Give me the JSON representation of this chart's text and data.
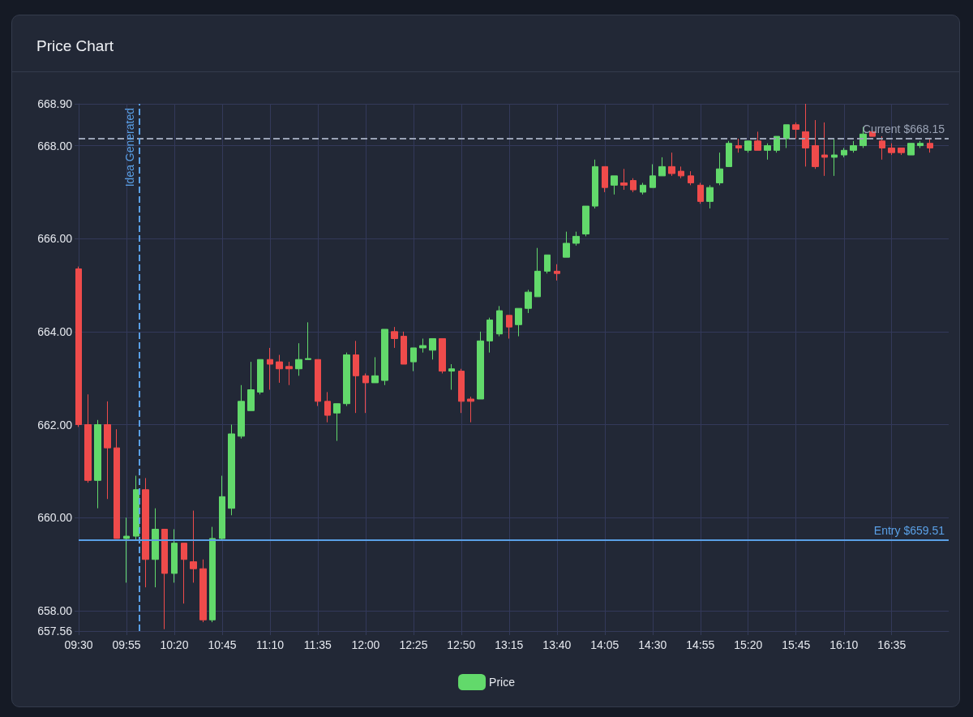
{
  "chart_data": {
    "type": "candlestick",
    "title": "Price Chart",
    "series": [
      {
        "name": "Price",
        "color": "#62d96b",
        "x": [
          9.5,
          9.583,
          9.667,
          9.75,
          9.833,
          9.917,
          10,
          10.083,
          10.167,
          10.25,
          10.333,
          10.417,
          10.5,
          10.583,
          10.667,
          10.75,
          10.833,
          10.917,
          11,
          11.083,
          11.167,
          11.25,
          11.333,
          11.417,
          11.5,
          11.583,
          11.667,
          11.75,
          11.833,
          11.917,
          12,
          12.083,
          12.167,
          12.25,
          12.333,
          12.417,
          12.5,
          12.583,
          12.667,
          12.75,
          12.833,
          12.917,
          13,
          13.083,
          13.167,
          13.25,
          13.333,
          13.417,
          13.5,
          13.583,
          13.667,
          13.75,
          13.833,
          13.917,
          14,
          14.083,
          14.167,
          14.25,
          14.333,
          14.417,
          14.5,
          14.583,
          14.667,
          14.75,
          14.833,
          14.917,
          15,
          15.083,
          15.167,
          15.25,
          15.333,
          15.417,
          15.5,
          15.583,
          15.667,
          15.75,
          15.833,
          15.917,
          16,
          16.083,
          16.167,
          16.25,
          16.333,
          16.417,
          16.5,
          16.583,
          16.667,
          16.75,
          16.833,
          16.917
        ],
        "ohlc": [
          [
            665.35,
            665.4,
            661.95,
            662.0
          ],
          [
            662.0,
            662.65,
            660.75,
            660.8
          ],
          [
            660.8,
            662.1,
            660.2,
            662.0
          ],
          [
            662.0,
            662.5,
            660.4,
            661.5
          ],
          [
            661.5,
            661.9,
            659.55,
            659.55
          ],
          [
            659.55,
            660.0,
            658.6,
            659.6
          ],
          [
            659.6,
            660.9,
            659.5,
            660.6
          ],
          [
            660.6,
            660.85,
            658.5,
            659.1
          ],
          [
            659.1,
            660.2,
            658.5,
            659.75
          ],
          [
            659.75,
            659.75,
            657.6,
            658.8
          ],
          [
            658.8,
            659.75,
            658.6,
            659.45
          ],
          [
            659.45,
            659.45,
            658.15,
            659.1
          ],
          [
            659.05,
            660.15,
            658.6,
            658.9
          ],
          [
            658.9,
            659.1,
            657.75,
            657.8
          ],
          [
            657.8,
            659.8,
            657.75,
            659.55
          ],
          [
            659.55,
            660.9,
            659.5,
            660.45
          ],
          [
            660.2,
            662.0,
            660.05,
            661.8
          ],
          [
            661.75,
            662.85,
            661.7,
            662.5
          ],
          [
            662.3,
            663.35,
            662.3,
            662.75
          ],
          [
            662.7,
            663.4,
            662.65,
            663.4
          ],
          [
            663.4,
            663.65,
            662.75,
            663.3
          ],
          [
            663.35,
            663.5,
            662.9,
            663.2
          ],
          [
            663.25,
            663.35,
            662.85,
            663.2
          ],
          [
            663.2,
            663.75,
            663.05,
            663.4
          ],
          [
            663.4,
            664.2,
            663.4,
            663.42
          ],
          [
            663.4,
            663.4,
            662.4,
            662.5
          ],
          [
            662.5,
            662.7,
            662.05,
            662.2
          ],
          [
            662.25,
            662.45,
            661.65,
            662.45
          ],
          [
            662.45,
            663.55,
            662.4,
            663.5
          ],
          [
            663.5,
            663.8,
            662.25,
            663.05
          ],
          [
            663.05,
            663.1,
            662.25,
            662.9
          ],
          [
            662.9,
            663.45,
            662.9,
            663.05
          ],
          [
            662.95,
            664.05,
            662.85,
            664.05
          ],
          [
            664.0,
            664.1,
            663.65,
            663.85
          ],
          [
            663.9,
            664.0,
            663.3,
            663.3
          ],
          [
            663.35,
            663.65,
            663.15,
            663.65
          ],
          [
            663.65,
            663.85,
            663.55,
            663.7
          ],
          [
            663.6,
            663.85,
            663.4,
            663.85
          ],
          [
            663.85,
            663.85,
            663.1,
            663.15
          ],
          [
            663.15,
            663.3,
            662.75,
            663.2
          ],
          [
            663.15,
            663.2,
            662.25,
            662.5
          ],
          [
            662.55,
            662.6,
            662.05,
            662.5
          ],
          [
            662.55,
            664.0,
            662.55,
            663.8
          ],
          [
            663.8,
            664.3,
            663.55,
            664.25
          ],
          [
            663.95,
            664.55,
            663.9,
            664.45
          ],
          [
            664.35,
            664.35,
            663.85,
            664.1
          ],
          [
            664.15,
            664.5,
            663.9,
            664.5
          ],
          [
            664.5,
            664.9,
            664.4,
            664.85
          ],
          [
            664.75,
            665.8,
            664.75,
            665.3
          ],
          [
            665.3,
            665.65,
            665.25,
            665.65
          ],
          [
            665.3,
            665.45,
            665.1,
            665.25
          ],
          [
            665.6,
            666.15,
            665.6,
            665.9
          ],
          [
            665.9,
            666.15,
            665.85,
            666.05
          ],
          [
            666.1,
            666.7,
            666.05,
            666.7
          ],
          [
            666.7,
            667.7,
            666.65,
            667.55
          ],
          [
            667.55,
            667.55,
            667.0,
            667.1
          ],
          [
            667.15,
            667.35,
            666.95,
            667.35
          ],
          [
            667.2,
            667.5,
            667.05,
            667.15
          ],
          [
            667.25,
            667.3,
            667.0,
            667.05
          ],
          [
            667.0,
            667.2,
            666.95,
            667.15
          ],
          [
            667.1,
            667.6,
            667.1,
            667.35
          ],
          [
            667.35,
            667.75,
            667.35,
            667.55
          ],
          [
            667.55,
            667.85,
            667.35,
            667.4
          ],
          [
            667.45,
            667.55,
            667.3,
            667.35
          ],
          [
            667.35,
            667.45,
            667.15,
            667.2
          ],
          [
            667.15,
            667.2,
            666.75,
            666.8
          ],
          [
            666.8,
            667.15,
            666.65,
            667.1
          ],
          [
            667.2,
            667.85,
            667.15,
            667.5
          ],
          [
            667.55,
            668.1,
            667.55,
            668.05
          ],
          [
            668.0,
            668.15,
            667.85,
            667.95
          ],
          [
            667.9,
            668.1,
            667.85,
            668.1
          ],
          [
            668.1,
            668.3,
            667.9,
            667.9
          ],
          [
            667.9,
            668.05,
            667.7,
            668.0
          ],
          [
            667.9,
            668.2,
            667.85,
            668.2
          ],
          [
            668.15,
            668.45,
            667.95,
            668.45
          ],
          [
            668.45,
            668.5,
            668.15,
            668.35
          ],
          [
            668.3,
            668.9,
            667.55,
            667.95
          ],
          [
            668.0,
            668.55,
            667.5,
            667.55
          ],
          [
            667.8,
            668.5,
            667.35,
            667.75
          ],
          [
            667.75,
            668.15,
            667.35,
            667.8
          ],
          [
            667.8,
            667.95,
            667.75,
            667.9
          ],
          [
            667.9,
            668.1,
            667.85,
            668.0
          ],
          [
            668.0,
            668.4,
            667.95,
            668.25
          ],
          [
            668.3,
            668.3,
            668.2,
            668.2
          ],
          [
            668.1,
            668.2,
            667.7,
            667.95
          ],
          [
            667.95,
            668.05,
            667.8,
            667.85
          ],
          [
            667.95,
            667.95,
            667.8,
            667.85
          ],
          [
            667.8,
            668.05,
            667.8,
            668.05
          ],
          [
            668.0,
            668.1,
            667.95,
            668.05
          ],
          [
            668.05,
            668.15,
            667.85,
            667.95
          ]
        ],
        "colors": [
          "#ef4b4b",
          "#ef4b4b",
          "#62d96b",
          "#ef4b4b",
          "#ef4b4b",
          "#62d96b",
          "#62d96b",
          "#ef4b4b",
          "#62d96b",
          "#ef4b4b",
          "#62d96b",
          "#ef4b4b",
          "#ef4b4b",
          "#ef4b4b",
          "#62d96b",
          "#62d96b",
          "#62d96b",
          "#62d96b",
          "#62d96b",
          "#62d96b",
          "#ef4b4b",
          "#ef4b4b",
          "#ef4b4b",
          "#62d96b",
          "#62d96b",
          "#ef4b4b",
          "#ef4b4b",
          "#62d96b",
          "#62d96b",
          "#ef4b4b",
          "#ef4b4b",
          "#62d96b",
          "#62d96b",
          "#ef4b4b",
          "#ef4b4b",
          "#62d96b",
          "#62d96b",
          "#62d96b",
          "#ef4b4b",
          "#62d96b",
          "#ef4b4b",
          "#ef4b4b",
          "#62d96b",
          "#62d96b",
          "#62d96b",
          "#ef4b4b",
          "#62d96b",
          "#62d96b",
          "#62d96b",
          "#62d96b",
          "#ef4b4b",
          "#62d96b",
          "#62d96b",
          "#62d96b",
          "#62d96b",
          "#ef4b4b",
          "#62d96b",
          "#ef4b4b",
          "#ef4b4b",
          "#62d96b",
          "#62d96b",
          "#62d96b",
          "#ef4b4b",
          "#ef4b4b",
          "#ef4b4b",
          "#ef4b4b",
          "#62d96b",
          "#62d96b",
          "#62d96b",
          "#ef4b4b",
          "#62d96b",
          "#ef4b4b",
          "#62d96b",
          "#62d96b",
          "#62d96b",
          "#ef4b4b",
          "#ef4b4b",
          "#ef4b4b",
          "#ef4b4b",
          "#62d96b",
          "#62d96b",
          "#62d96b",
          "#62d96b",
          "#ef4b4b",
          "#ef4b4b",
          "#ef4b4b",
          "#ef4b4b",
          "#62d96b",
          "#62d96b",
          "#ef4b4b"
        ]
      }
    ],
    "xlim": [
      9.5,
      17.08
    ],
    "xticks": [
      {
        "value": 9.5,
        "label": "09:30"
      },
      {
        "value": 9.917,
        "label": "09:55"
      },
      {
        "value": 10.333,
        "label": "10:20"
      },
      {
        "value": 10.75,
        "label": "10:45"
      },
      {
        "value": 11.167,
        "label": "11:10"
      },
      {
        "value": 11.583,
        "label": "11:35"
      },
      {
        "value": 12,
        "label": "12:00"
      },
      {
        "value": 12.417,
        "label": "12:25"
      },
      {
        "value": 12.833,
        "label": "12:50"
      },
      {
        "value": 13.25,
        "label": "13:15"
      },
      {
        "value": 13.667,
        "label": "13:40"
      },
      {
        "value": 14.083,
        "label": "14:05"
      },
      {
        "value": 14.5,
        "label": "14:30"
      },
      {
        "value": 14.917,
        "label": "14:55"
      },
      {
        "value": 15.333,
        "label": "15:20"
      },
      {
        "value": 15.75,
        "label": "15:45"
      },
      {
        "value": 16.167,
        "label": "16:10"
      },
      {
        "value": 16.583,
        "label": "16:35"
      }
    ],
    "ylim": [
      657.56,
      668.9
    ],
    "yticks": [
      {
        "value": 657.56,
        "label": "657.56"
      },
      {
        "value": 658,
        "label": "658.00"
      },
      {
        "value": 660,
        "label": "660.00"
      },
      {
        "value": 662,
        "label": "662.00"
      },
      {
        "value": 664,
        "label": "664.00"
      },
      {
        "value": 666,
        "label": "666.00"
      },
      {
        "value": 668,
        "label": "668.00"
      },
      {
        "value": 668.9,
        "label": "668.90"
      }
    ],
    "ref_lines": [
      {
        "axis": "y",
        "value": 668.15,
        "label": "Current $668.15",
        "color": "#9aa3b5",
        "line_style": "dashed"
      },
      {
        "axis": "y",
        "value": 659.51,
        "label": "Entry $659.51",
        "color": "#5aa0e6",
        "line_style": "solid"
      },
      {
        "axis": "x",
        "value": 10.03,
        "label": "Idea Generated",
        "color": "#5aa0e6",
        "line_style": "dashed"
      }
    ],
    "grid": true,
    "legend": "bottom"
  }
}
